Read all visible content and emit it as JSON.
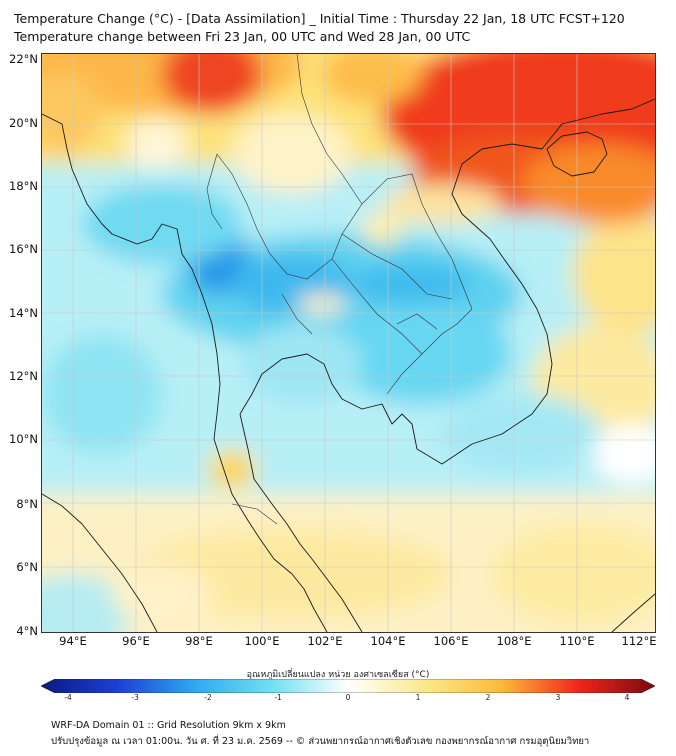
{
  "title_line1": "Temperature Change (°C) - [Data Assimilation] _ Initial Time : Thursday 22 Jan, 18 UTC FCST+120",
  "title_line2": "Temperature change between Fri 23 Jan, 00 UTC and Wed 28 Jan, 00 UTC",
  "lat_labels": [
    "22°N",
    "20°N",
    "18°N",
    "16°N",
    "14°N",
    "12°N",
    "10°N",
    "8°N",
    "6°N",
    "4°N"
  ],
  "lon_labels": [
    "94°E",
    "96°E",
    "98°E",
    "100°E",
    "102°E",
    "104°E",
    "106°E",
    "108°E",
    "110°E",
    "112°E"
  ],
  "colorbar": {
    "title": "อุณหภูมิเปลี่ยนแปลง หน่วย องศาเซลเซียส (°C)",
    "ticks": [
      "-4",
      "-3",
      "-2",
      "-1",
      "0",
      "1",
      "2",
      "3",
      "4"
    ],
    "range": [
      -4,
      4
    ],
    "colors": {
      "minus4": "#0a1a80",
      "minus3": "#1c3fd6",
      "minus2": "#2fa8f0",
      "minus1": "#6fe0f2",
      "zero": "#ffffff",
      "plus1": "#fbe98a",
      "plus2": "#fdb93a",
      "plus3": "#f0261a",
      "plus4": "#7a0a10"
    }
  },
  "footer_line1": "WRF-DA Domain 01 :: Grid Resolution 9km x 9km",
  "footer_line2": "ปรับปรุงข้อมูล ณ เวลา 01:00น. วัน ศ. ที่ 23 ม.ค. 2569 -- © ส่วนพยากรณ์อากาศเชิงตัวเลข กองพยากรณ์อากาศ กรมอุตุนิยมวิทยา"
}
